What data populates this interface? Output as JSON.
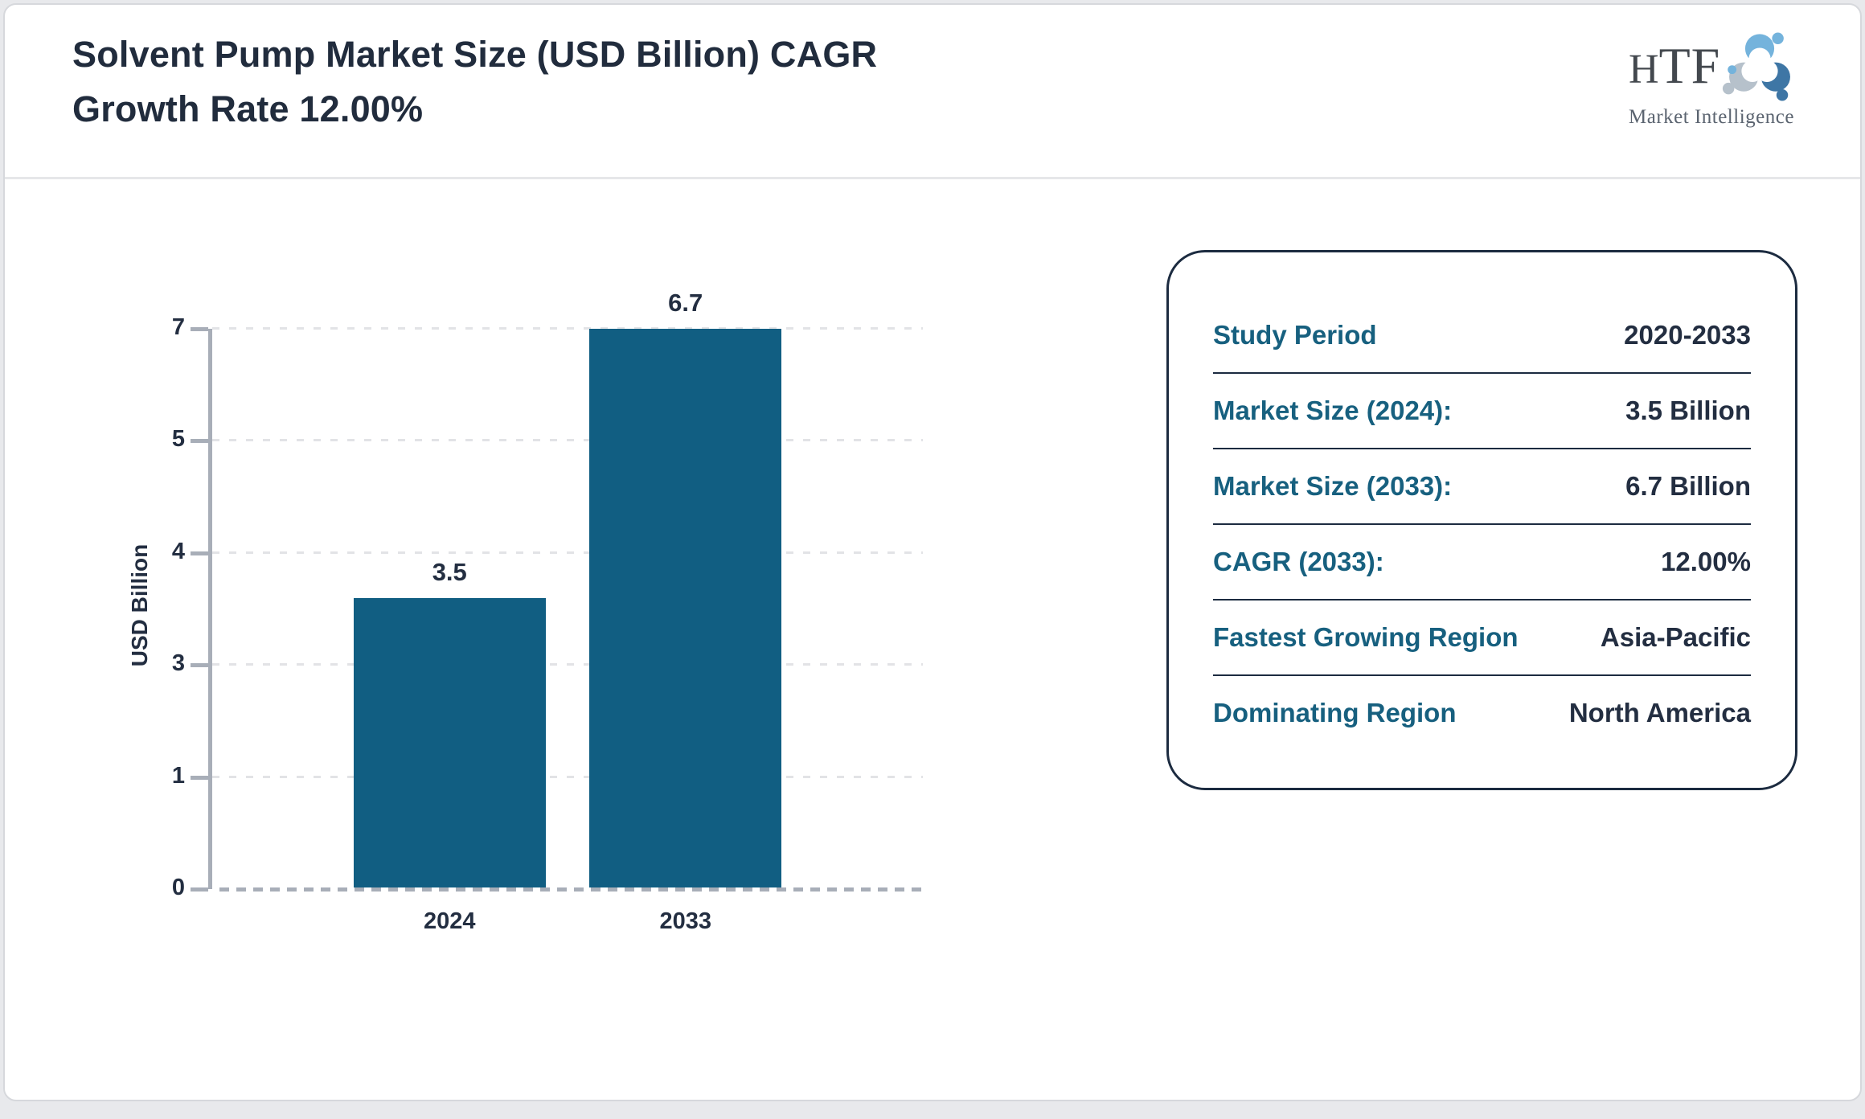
{
  "page": {
    "title_line1": "Solvent Pump Market Size (USD Billion) CAGR",
    "title_line2": "Growth Rate 12.00%"
  },
  "logo": {
    "name_part1": "H",
    "name_part2": "TF",
    "subtitle": "Market Intelligence"
  },
  "chart_data": {
    "type": "bar",
    "title": "Solvent Pump Market Size (USD Billion) CAGR Growth Rate 12.00%",
    "categories": [
      "2024",
      "2033"
    ],
    "values": [
      3.5,
      6.7
    ],
    "value_labels": [
      "3.5",
      "6.7"
    ],
    "xlabel": "",
    "ylabel": "USD Billion",
    "y_ticks": [
      0,
      1,
      3,
      4,
      5,
      7
    ],
    "ylim": [
      0,
      7
    ],
    "grid": "horizontal-dashed",
    "legend": "none",
    "bar_color": "#115e82",
    "bar_height_pct": [
      52,
      100
    ],
    "bar_center_pct": [
      33.4,
      66.6
    ],
    "bar_width_pct": 27
  },
  "card": {
    "rows": [
      {
        "label": "Study Period",
        "value": "2020-2033"
      },
      {
        "label": "Market Size (2024):",
        "value": "3.5 Billion"
      },
      {
        "label": "Market Size (2033):",
        "value": "6.7 Billion"
      },
      {
        "label": "CAGR (2033):",
        "value": "12.00%"
      },
      {
        "label": "Fastest Growing Region",
        "value": "Asia-Pacific"
      },
      {
        "label": "Dominating Region",
        "value": "North America"
      }
    ]
  },
  "colors": {
    "bar_teal": "#115e82",
    "label_teal": "#17607f",
    "value_navy": "#232e41",
    "axis_gray": "#a8aeb8",
    "card_border_navy": "#1c2b40",
    "page_background": "#e8e9ec",
    "logo_light_blue": "#74b3dc",
    "logo_steel_blue": "#3e76a5",
    "logo_gray_blue": "#b6c1cb"
  }
}
